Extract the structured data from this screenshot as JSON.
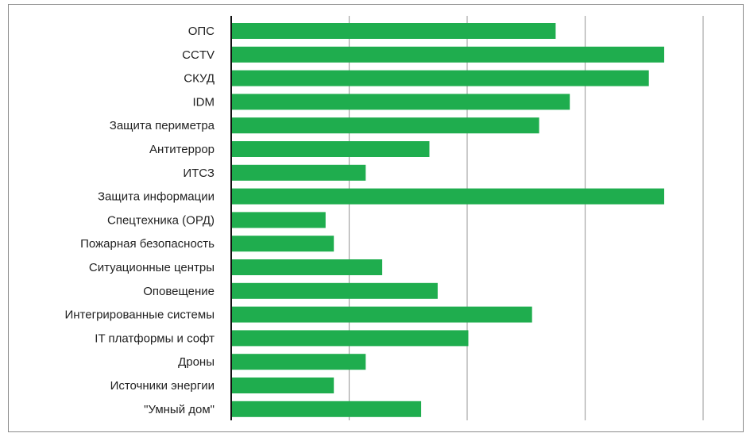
{
  "chart_data": {
    "type": "bar",
    "orientation": "horizontal",
    "title": "",
    "xlabel": "",
    "ylabel": "",
    "categories": [
      "ОПС",
      "CCTV",
      "СКУД",
      "IDM",
      "Защита периметра",
      "Антитеррор",
      "ИТСЗ",
      "Защита информации",
      "Спецтехника (ОРД)",
      "Пожарная безопасность",
      "Ситуационные центры",
      "Оповещение",
      "Интегрированные системы",
      "IT платформы и софт",
      "Дроны",
      "Источники энергии",
      "\"Умный дом\""
    ],
    "values": [
      27.5,
      36.7,
      35.4,
      28.7,
      26.1,
      16.8,
      11.4,
      36.7,
      8.0,
      8.7,
      12.8,
      17.5,
      25.5,
      20.1,
      11.4,
      8.7,
      16.1
    ],
    "xlim": [
      0,
      40
    ],
    "grid_x": true,
    "gridlines_at": [
      10,
      20,
      30,
      40
    ],
    "tick_labels_shown": false,
    "legend": "none",
    "colors": {
      "bar": "#1fad4e",
      "grid": "#a6a6a6",
      "axis": "#111111",
      "frame": "#8a8a8a"
    }
  }
}
